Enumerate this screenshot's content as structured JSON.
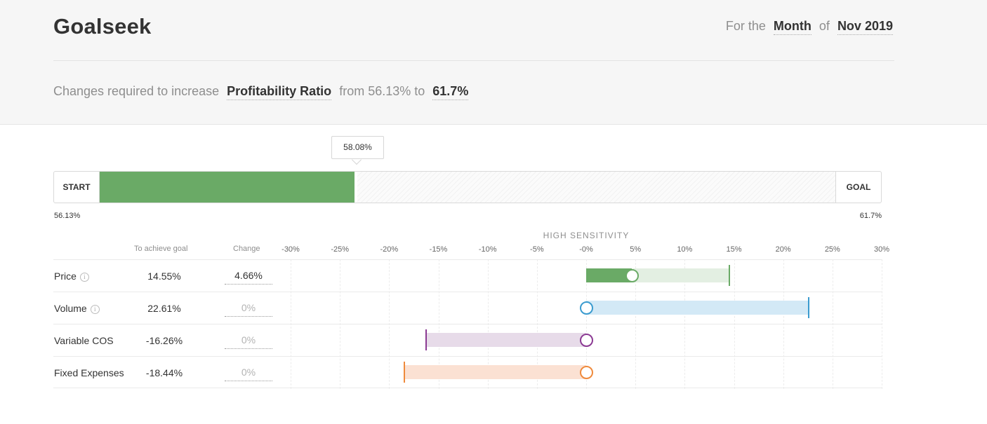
{
  "header": {
    "title": "Goalseek",
    "for_the": "For the",
    "period_type": "Month",
    "of": "of",
    "period_value": "Nov 2019"
  },
  "changes": {
    "prefix": "Changes required to increase",
    "metric": "Profitability Ratio",
    "from_text": "from 56.13% to",
    "target": "61.7%"
  },
  "progress": {
    "start_label": "START",
    "goal_label": "GOAL",
    "current_value": "58.08%",
    "start_value": "56.13%",
    "goal_value": "61.7%",
    "current_fraction": 0.35
  },
  "sensitivity": {
    "title": "HIGH SENSITIVITY",
    "col_goal": "To achieve goal",
    "col_change": "Change",
    "ticks": [
      "-30%",
      "-25%",
      "-20%",
      "-15%",
      "-10%",
      "-5%",
      "-0%",
      "5%",
      "10%",
      "15%",
      "20%",
      "25%",
      "30%"
    ],
    "range": [
      -30,
      30
    ],
    "rows": [
      {
        "label": "Price",
        "info": "i",
        "goal": "14.55%",
        "goal_value": 14.55,
        "change": "4.66%",
        "change_value": 4.66,
        "color": "#6aaa66",
        "bg": "#e3efe2"
      },
      {
        "label": "Volume",
        "info": "i",
        "goal": "22.61%",
        "goal_value": 22.61,
        "change": "0%",
        "change_value": 0,
        "color": "#3a9bcf",
        "bg": "#d3e9f6"
      },
      {
        "label": "Variable COS",
        "goal": "-16.26%",
        "goal_value": -16.26,
        "change": "0%",
        "change_value": 0,
        "color": "#8b3a93",
        "bg": "#e7dbe9"
      },
      {
        "label": "Fixed Expenses",
        "goal": "-18.44%",
        "goal_value": -18.44,
        "change": "0%",
        "change_value": 0,
        "color": "#ef8a3c",
        "bg": "#fbe1d3"
      }
    ]
  }
}
